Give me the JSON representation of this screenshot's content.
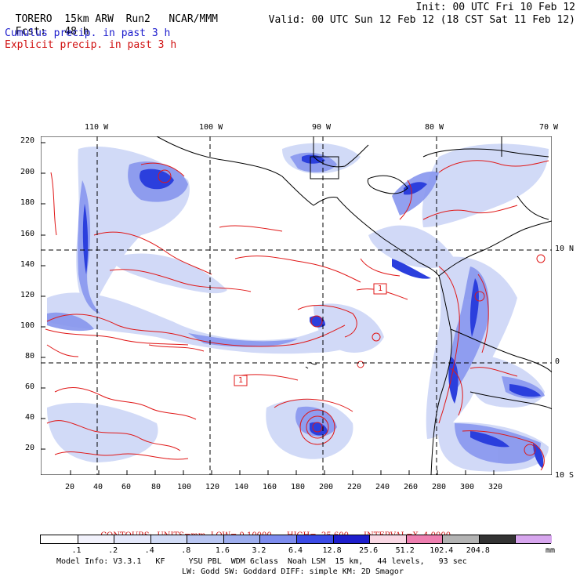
{
  "header": {
    "model": "TORERO",
    "resolution": "15km ARW",
    "run": "Run2",
    "org": "NCAR/MMM",
    "init": "Init: 00 UTC Fri 10 Feb 12",
    "fcst_label": "Fcst:",
    "fcst_value": "48 h",
    "valid": "Valid: 00 UTC Sun 12 Feb 12 (18 CST Sat 11 Feb 12)",
    "legend_cumulus": "Cumulus precip. in past 3 h",
    "legend_explicit": "Explicit precip. in past 3 h"
  },
  "map": {
    "top_lon_labels": [
      "110 W",
      "100 W",
      "90 W",
      "80 W",
      "70 W"
    ],
    "right_lat_labels": [
      "10 N",
      "0",
      "10 S"
    ],
    "y_grid_labels": [
      "220",
      "200",
      "180",
      "160",
      "140",
      "120",
      "100",
      "80",
      "60",
      "40",
      "20"
    ],
    "x_grid_labels": [
      "20",
      "40",
      "60",
      "80",
      "100",
      "120",
      "140",
      "160",
      "180",
      "200",
      "220",
      "240",
      "260",
      "280",
      "300",
      "320"
    ],
    "box_label_1": "1",
    "box_label_2": "1",
    "colors": {
      "contour": "#e01818",
      "precip_light": "#cfd8f7",
      "precip_mid": "#8796ee",
      "precip_dark": "#2b3fdd",
      "coast": "#000000"
    }
  },
  "contour_caption": {
    "contours": "CONTOURS:",
    "units": "UNITS=mm",
    "low": "LOW= 0.10000",
    "high": "HIGH=  25.600",
    "interval": "INTERVAL=X  4.0000"
  },
  "colorbar": {
    "unit": "mm",
    "labels": [
      ".1",
      ".2",
      ".4",
      ".8",
      "1.6",
      "3.2",
      "6.4",
      "12.8",
      "25.6",
      "51.2",
      "102.4",
      "204.8"
    ],
    "colors": [
      "#ffffff",
      "#f2f2fc",
      "#e4e8fa",
      "#d2dcf6",
      "#b9c6f2",
      "#9eaeee",
      "#7d8cee",
      "#3c4be6",
      "#1e1ecc",
      "#f9d8e4",
      "#ee7fb0",
      "#b3b3b3",
      "#333333",
      "#d7a6ee"
    ]
  },
  "footer": {
    "line1": "Model Info: V3.3.1   KF     YSU PBL  WDM 6class  Noah LSM  15 km,   44 levels,   93 sec",
    "line2": "LW: Godd SW: Goddard DIFF: simple KM: 2D Smagor"
  }
}
